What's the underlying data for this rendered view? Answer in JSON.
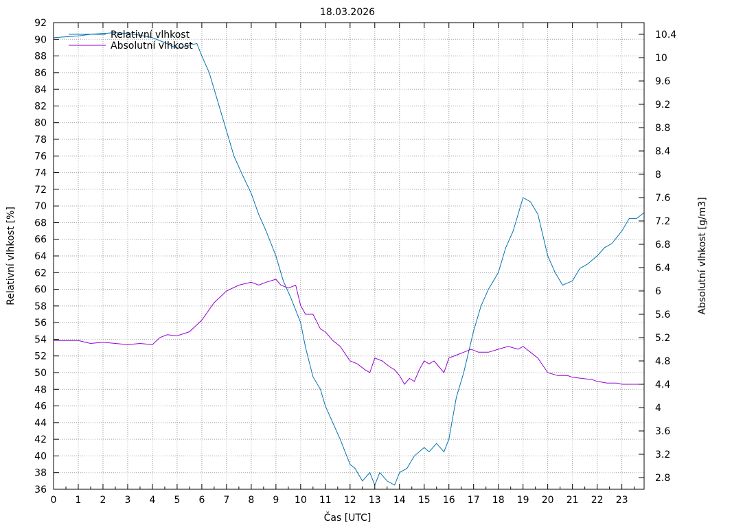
{
  "chart_data": {
    "type": "line",
    "title": "18.03.2026",
    "xlabel": "Čas [UTC]",
    "ylabel": "Relativní vlhkost [%]",
    "y2label": "Absolutní vlhkost [g/m3]",
    "xlim": [
      0,
      23.9
    ],
    "ylim": [
      36,
      92
    ],
    "y2lim": [
      2.6,
      10.6
    ],
    "x_ticks": [
      "0",
      "1",
      "2",
      "3",
      "4",
      "5",
      "6",
      "7",
      "8",
      "9",
      "10",
      "11",
      "12",
      "13",
      "14",
      "15",
      "16",
      "17",
      "18",
      "19",
      "20",
      "21",
      "22",
      "23"
    ],
    "y_ticks": [
      "36",
      "38",
      "40",
      "42",
      "44",
      "46",
      "48",
      "50",
      "52",
      "54",
      "56",
      "58",
      "60",
      "62",
      "64",
      "66",
      "68",
      "70",
      "72",
      "74",
      "76",
      "78",
      "80",
      "82",
      "84",
      "86",
      "88",
      "90",
      "92"
    ],
    "y2_ticks": [
      "2.8",
      "3.2",
      "3.6",
      "4",
      "4.4",
      "4.8",
      "5.2",
      "5.6",
      "6",
      "6.4",
      "6.8",
      "7.2",
      "7.6",
      "8",
      "8.4",
      "8.8",
      "9.2",
      "9.6",
      "10",
      "10.4"
    ],
    "grid": true,
    "legend_position": "top-left",
    "colors": {
      "relative": "#0072b2",
      "absolute": "#9400d3"
    },
    "series": [
      {
        "name": "Relativní vlhkost",
        "axis": "left",
        "x": [
          0,
          0.5,
          1,
          1.5,
          2,
          2.5,
          3,
          3.5,
          4,
          4.5,
          5,
          5.5,
          5.8,
          6,
          6.3,
          6.6,
          7,
          7.3,
          7.6,
          8,
          8.3,
          8.6,
          9,
          9.3,
          9.6,
          10,
          10.2,
          10.5,
          10.8,
          11,
          11.3,
          11.6,
          11.8,
          12,
          12.2,
          12.5,
          12.8,
          13,
          13.2,
          13.5,
          13.8,
          14,
          14.3,
          14.6,
          15,
          15.2,
          15.5,
          15.8,
          16,
          16.3,
          16.6,
          17,
          17.3,
          17.6,
          18,
          18.3,
          18.6,
          19,
          19.3,
          19.6,
          20,
          20.3,
          20.6,
          21,
          21.3,
          21.6,
          22,
          22.3,
          22.6,
          23,
          23.3,
          23.6,
          23.9
        ],
        "y": [
          90.2,
          90.3,
          90.4,
          90.6,
          90.7,
          90.8,
          90.7,
          90.5,
          90.2,
          89.6,
          88.9,
          89.3,
          89.5,
          88,
          86,
          83,
          79,
          76,
          74,
          71.5,
          69,
          67,
          64,
          61,
          59,
          56,
          53,
          49.5,
          48,
          46,
          44,
          42,
          40.5,
          39,
          38.5,
          37,
          38,
          36.5,
          38,
          37,
          36.5,
          38,
          38.5,
          40,
          41,
          40.5,
          41.5,
          40.5,
          42,
          47,
          50,
          55,
          58,
          60,
          62,
          65,
          67,
          71,
          70.5,
          69,
          64,
          62,
          60.5,
          61,
          62.5,
          63,
          64,
          65,
          65.5,
          67,
          68.5,
          68.5,
          69.2
        ]
      },
      {
        "name": "Absolutní vlhkost",
        "axis": "right",
        "x": [
          0,
          0.5,
          1,
          1.5,
          2,
          2.5,
          3,
          3.5,
          4,
          4.3,
          4.6,
          5,
          5.5,
          6,
          6.5,
          7,
          7.5,
          8,
          8.3,
          8.6,
          9,
          9.2,
          9.5,
          9.8,
          10,
          10.2,
          10.5,
          10.8,
          11,
          11.3,
          11.6,
          12,
          12.3,
          12.6,
          12.8,
          13,
          13.3,
          13.6,
          13.8,
          14,
          14.2,
          14.4,
          14.6,
          14.8,
          15,
          15.2,
          15.4,
          15.6,
          15.8,
          16,
          16.3,
          16.6,
          16.9,
          17.2,
          17.6,
          18,
          18.4,
          18.8,
          19,
          19.3,
          19.6,
          20,
          20.4,
          20.8,
          21,
          21.4,
          21.8,
          22,
          22.4,
          22.8,
          23,
          23.4,
          23.9
        ],
        "y": [
          5.15,
          5.15,
          5.15,
          5.1,
          5.12,
          5.1,
          5.08,
          5.1,
          5.08,
          5.2,
          5.25,
          5.23,
          5.3,
          5.5,
          5.8,
          6,
          6.1,
          6.15,
          6.1,
          6.15,
          6.2,
          6.1,
          6.05,
          6.1,
          5.75,
          5.6,
          5.6,
          5.35,
          5.3,
          5.15,
          5.05,
          4.8,
          4.75,
          4.65,
          4.6,
          4.85,
          4.8,
          4.7,
          4.65,
          4.55,
          4.4,
          4.5,
          4.45,
          4.65,
          4.8,
          4.75,
          4.8,
          4.7,
          4.6,
          4.85,
          4.9,
          4.95,
          5,
          4.95,
          4.95,
          5,
          5.05,
          5.0,
          5.05,
          4.95,
          4.85,
          4.6,
          4.55,
          4.55,
          4.52,
          4.5,
          4.48,
          4.45,
          4.42,
          4.42,
          4.4,
          4.4,
          4.4
        ]
      }
    ]
  }
}
